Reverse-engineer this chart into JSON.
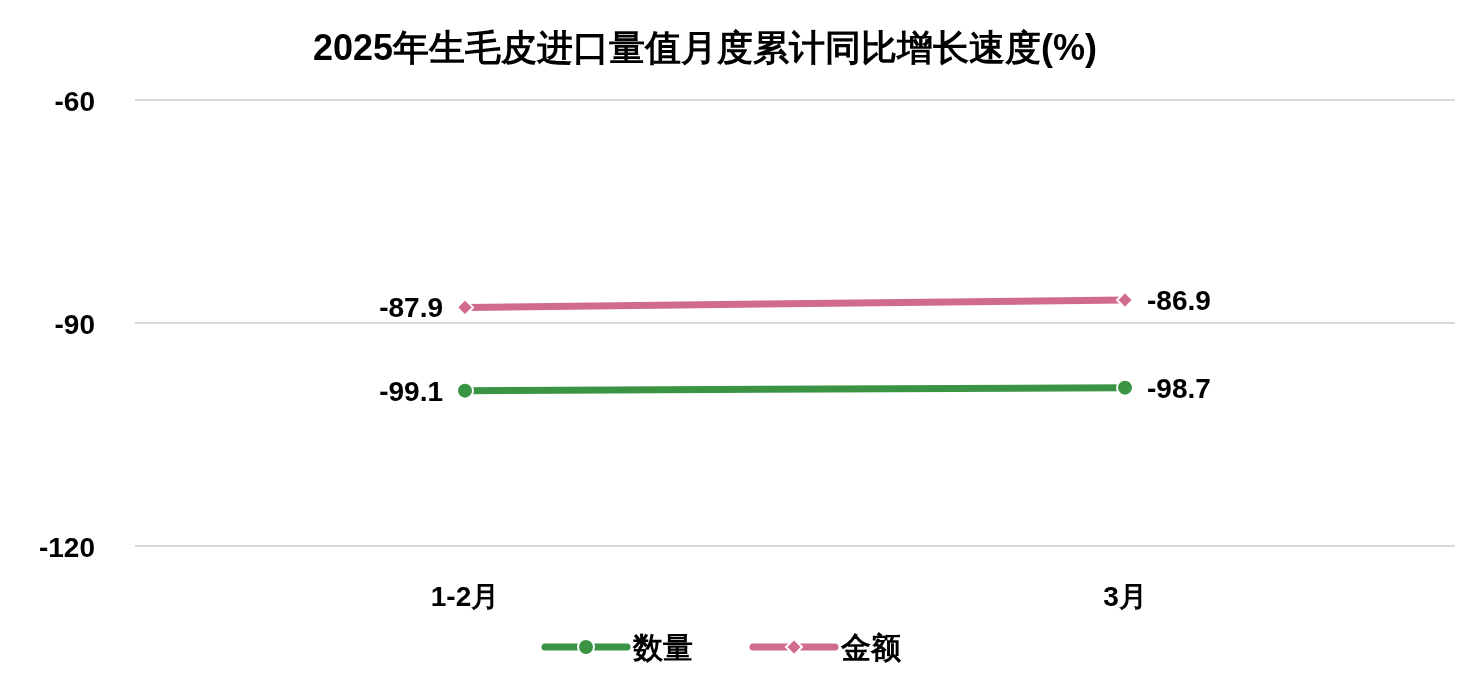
{
  "chart_data": {
    "type": "line",
    "title": "2025年生毛皮进口量值月度累计同比增长速度(%)",
    "categories": [
      "1-2月",
      "3月"
    ],
    "series": [
      {
        "name": "数量",
        "color": "#3a9444",
        "values": [
          -99.1,
          -98.7
        ],
        "marker": "circle"
      },
      {
        "name": "金额",
        "color": "#d06b8c",
        "values": [
          -87.9,
          -86.9
        ],
        "marker": "diamond"
      }
    ],
    "ylim": [
      -120,
      -60
    ],
    "yticks": [
      -120,
      -90,
      -60
    ],
    "grid": "y",
    "legend": "bottom",
    "data_labels": true,
    "line_style": "solid"
  }
}
